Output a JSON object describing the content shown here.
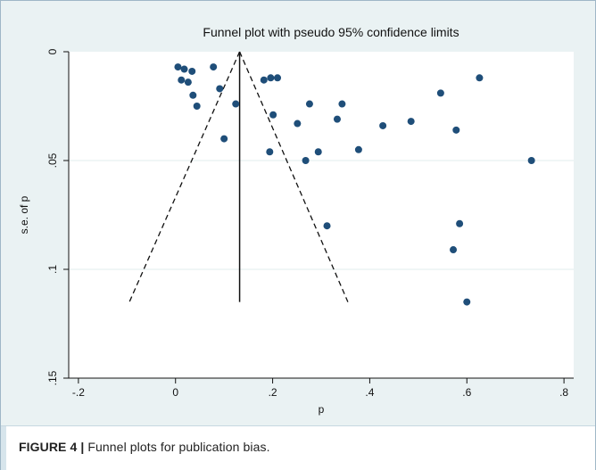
{
  "caption": {
    "label": "FIGURE 4 |",
    "text": "Funnel plots for publication bias."
  },
  "chart_data": {
    "type": "scatter",
    "title": "Funnel plot with pseudo 95% confidence limits",
    "xlabel": "p",
    "ylabel": "s.e. of p",
    "xlim": [
      -0.22,
      0.82
    ],
    "ylim": [
      0,
      0.15
    ],
    "y_reversed": true,
    "x_ticks": [
      -0.2,
      0,
      0.2,
      0.4,
      0.6,
      0.8
    ],
    "x_tick_labels": [
      "-.2",
      "0",
      ".2",
      ".4",
      ".6",
      ".8"
    ],
    "y_ticks": [
      0,
      0.05,
      0.1,
      0.15
    ],
    "y_tick_labels": [
      "0",
      ".05",
      ".1",
      ".15"
    ],
    "grid": "horizontal",
    "pooled_estimate": 0.132,
    "funnel_limits": {
      "apex": [
        0.132,
        0
      ],
      "lower_left": [
        -0.095,
        0.115
      ],
      "upper_right": [
        0.355,
        0.115
      ]
    },
    "points": [
      {
        "x": 0.005,
        "y": 0.007
      },
      {
        "x": 0.018,
        "y": 0.008
      },
      {
        "x": 0.034,
        "y": 0.009
      },
      {
        "x": 0.012,
        "y": 0.013
      },
      {
        "x": 0.026,
        "y": 0.014
      },
      {
        "x": 0.078,
        "y": 0.007
      },
      {
        "x": 0.036,
        "y": 0.02
      },
      {
        "x": 0.091,
        "y": 0.017
      },
      {
        "x": 0.044,
        "y": 0.025
      },
      {
        "x": 0.124,
        "y": 0.024
      },
      {
        "x": 0.1,
        "y": 0.04
      },
      {
        "x": 0.182,
        "y": 0.013
      },
      {
        "x": 0.196,
        "y": 0.012
      },
      {
        "x": 0.21,
        "y": 0.012
      },
      {
        "x": 0.201,
        "y": 0.029
      },
      {
        "x": 0.276,
        "y": 0.024
      },
      {
        "x": 0.251,
        "y": 0.033
      },
      {
        "x": 0.343,
        "y": 0.024
      },
      {
        "x": 0.333,
        "y": 0.031
      },
      {
        "x": 0.194,
        "y": 0.046
      },
      {
        "x": 0.294,
        "y": 0.046
      },
      {
        "x": 0.268,
        "y": 0.05
      },
      {
        "x": 0.377,
        "y": 0.045
      },
      {
        "x": 0.427,
        "y": 0.034
      },
      {
        "x": 0.485,
        "y": 0.032
      },
      {
        "x": 0.546,
        "y": 0.019
      },
      {
        "x": 0.626,
        "y": 0.012
      },
      {
        "x": 0.578,
        "y": 0.036
      },
      {
        "x": 0.733,
        "y": 0.05
      },
      {
        "x": 0.312,
        "y": 0.08
      },
      {
        "x": 0.585,
        "y": 0.079
      },
      {
        "x": 0.572,
        "y": 0.091
      },
      {
        "x": 0.6,
        "y": 0.115
      }
    ],
    "colors": {
      "point": "#1f4e79",
      "plot_background": "#ffffff",
      "outer_background": "#eaf2f3",
      "grid": "#e1ecee"
    }
  }
}
